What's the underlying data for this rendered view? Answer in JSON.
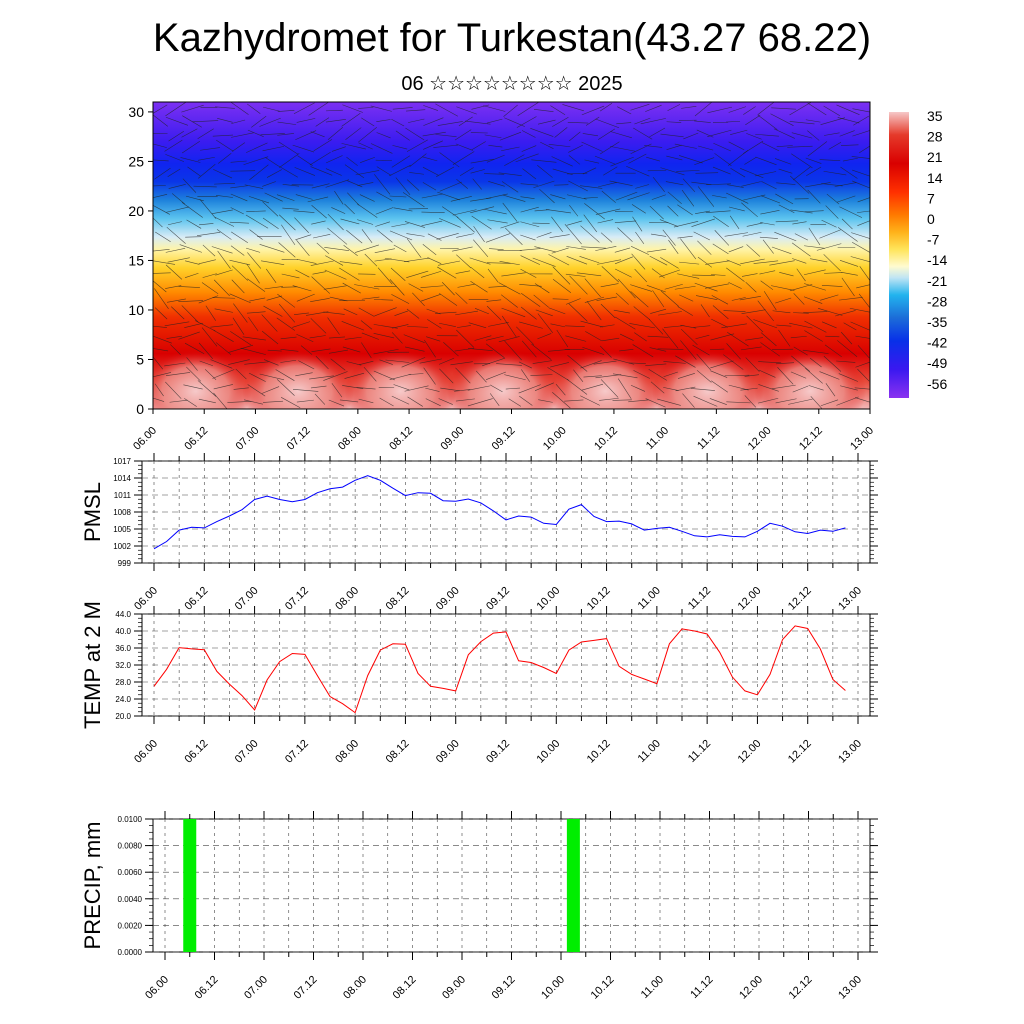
{
  "header": {
    "title": "Kazhydromet for Turkestan(43.27 68.22)",
    "subtitle": "06 ☆☆☆☆☆☆☆☆ 2025"
  },
  "time_labels": [
    "06.00",
    "06.12",
    "07.00",
    "07.12",
    "08.00",
    "08.12",
    "09.00",
    "09.12",
    "10.00",
    "10.12",
    "11.00",
    "11.12",
    "12.00",
    "12.12",
    "13.00"
  ],
  "chart_data": [
    {
      "type": "heatmap",
      "title": "",
      "xlabel": "",
      "ylabel": "",
      "ylim": [
        0,
        31
      ],
      "yticks": [
        "0",
        "5",
        "10",
        "15",
        "20",
        "25",
        "30"
      ],
      "colorbar": {
        "labels": [
          "35",
          "28",
          "21",
          "14",
          "7",
          "0",
          "-7",
          "-14",
          "-21",
          "-28",
          "-35",
          "-42",
          "-49",
          "-56"
        ],
        "colors": [
          "#f7c6c6",
          "#e53a2a",
          "#d90000",
          "#ff3300",
          "#ff8000",
          "#ffbf1a",
          "#ffe866",
          "#fffbc8",
          "#a0d8ef",
          "#22b3ee",
          "#1c7ad8",
          "#0830e8",
          "#3a18f0",
          "#7a2ef0"
        ]
      },
      "grid": false
    },
    {
      "type": "line",
      "title": "",
      "xlabel": "",
      "ylabel": "PMSL",
      "ylim": [
        999,
        1017
      ],
      "yticks": [
        "999",
        "1002",
        "1005",
        "1008",
        "1011",
        "1014",
        "1017"
      ],
      "line_color": "#0000ff",
      "grid": true,
      "x_hours": [
        0,
        3,
        6,
        9,
        12,
        15,
        18,
        21,
        24,
        27,
        30,
        33,
        36,
        39,
        42,
        45,
        48,
        51,
        54,
        57,
        60,
        63,
        66,
        69,
        72,
        75,
        78,
        81,
        84,
        87,
        90,
        93,
        96,
        99,
        102,
        105,
        108,
        111,
        114,
        117,
        120,
        123,
        126,
        129,
        132,
        135,
        138,
        141,
        144,
        147,
        150,
        153,
        156,
        159,
        162,
        165
      ],
      "values": [
        1001.5,
        1002.8,
        1004.8,
        1005.3,
        1005.2,
        1006.3,
        1007.3,
        1008.4,
        1010.2,
        1010.8,
        1010.2,
        1009.8,
        1010.2,
        1011.4,
        1012.1,
        1012.4,
        1013.6,
        1014.4,
        1013.6,
        1012.2,
        1010.9,
        1011.4,
        1011.3,
        1010.0,
        1009.9,
        1010.3,
        1009.6,
        1008.2,
        1006.6,
        1007.3,
        1007.1,
        1006.0,
        1005.8,
        1008.5,
        1009.3,
        1007.2,
        1006.3,
        1006.4,
        1005.9,
        1004.8,
        1005.1,
        1005.3,
        1004.6,
        1003.8,
        1003.6,
        1004.0,
        1003.7,
        1003.6,
        1004.6,
        1006.0,
        1005.5,
        1004.5,
        1004.2,
        1004.8,
        1004.6,
        1005.2
      ]
    },
    {
      "type": "line",
      "title": "",
      "xlabel": "",
      "ylabel": "TEMP at 2 M",
      "ylim": [
        20,
        44
      ],
      "yticks": [
        "20.0",
        "24.0",
        "28.0",
        "32.0",
        "36.0",
        "40.0",
        "44.0"
      ],
      "line_color": "#ff0000",
      "grid": true,
      "x_hours": [
        0,
        3,
        6,
        9,
        12,
        15,
        18,
        21,
        24,
        27,
        30,
        33,
        36,
        39,
        42,
        45,
        48,
        51,
        54,
        57,
        60,
        63,
        66,
        69,
        72,
        75,
        78,
        81,
        84,
        87,
        90,
        93,
        96,
        99,
        102,
        105,
        108,
        111,
        114,
        117,
        120,
        123,
        126,
        129,
        132,
        135,
        138,
        141,
        144,
        147,
        150,
        153,
        156,
        159,
        162,
        165
      ],
      "values": [
        27.0,
        31.0,
        36.1,
        35.8,
        35.6,
        30.5,
        27.5,
        24.8,
        21.4,
        28.5,
        32.8,
        34.7,
        34.5,
        29.5,
        24.6,
        22.9,
        20.8,
        29.5,
        35.5,
        37.0,
        36.9,
        30.0,
        27.0,
        26.5,
        25.9,
        34.4,
        37.5,
        39.5,
        39.8,
        33.0,
        32.6,
        31.4,
        30.0,
        35.5,
        37.4,
        37.8,
        38.2,
        31.7,
        29.8,
        28.7,
        27.6,
        37.0,
        40.5,
        40.0,
        39.3,
        35.0,
        29.2,
        25.9,
        25.0,
        29.8,
        38.0,
        41.2,
        40.6,
        35.8,
        28.6,
        26.0
      ]
    },
    {
      "type": "bar",
      "title": "",
      "xlabel": "",
      "ylabel": "PRECIP, mm",
      "ylim": [
        0,
        0.01
      ],
      "yticks": [
        "0.0000",
        "0.0020",
        "0.0040",
        "0.0060",
        "0.0080",
        "0.0100"
      ],
      "bar_color": "#00ee00",
      "grid": true,
      "bars": [
        {
          "x_hour": 6,
          "value": 0.01
        },
        {
          "x_hour": 99,
          "value": 0.01
        }
      ]
    }
  ]
}
